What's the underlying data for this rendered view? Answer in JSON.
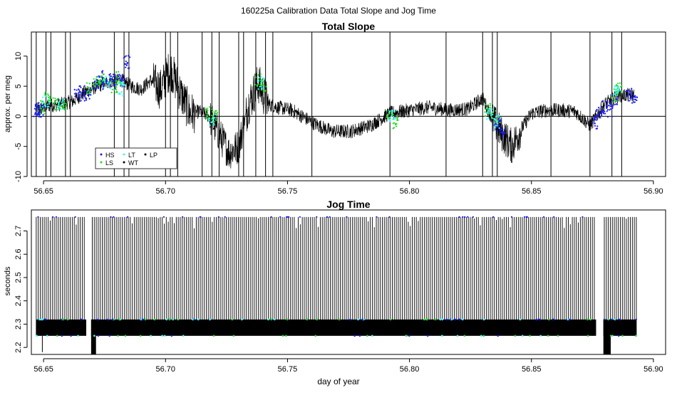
{
  "figure": {
    "title": "160225a   Calibration Data Total Slope and Jog Time"
  },
  "chart_data": [
    {
      "type": "line",
      "title": "Total Slope",
      "xlabel": "",
      "ylabel": "approx. per meg",
      "xlim": [
        56.645,
        56.905
      ],
      "ylim": [
        -10,
        14
      ],
      "xticks": [
        56.65,
        56.7,
        56.75,
        56.8,
        56.85,
        56.9
      ],
      "xtick_labels": [
        "56.65",
        "56.70",
        "56.75",
        "56.80",
        "56.85",
        "56.90"
      ],
      "yticks": [
        -10,
        -5,
        0,
        5,
        10
      ],
      "ytick_labels": [
        "-10",
        "-5",
        "0",
        "5",
        "10"
      ],
      "reference_line_y": 0,
      "legend": {
        "placement": "bottom-left",
        "entries": [
          {
            "label": "HS",
            "color": "#1a1aff"
          },
          {
            "label": "LT",
            "color": "#33ffff"
          },
          {
            "label": "LP",
            "color": "#000000"
          },
          {
            "label": "LS",
            "color": "#22dd22"
          },
          {
            "label": "WT",
            "color": "#000000"
          }
        ]
      },
      "series": [
        {
          "color": "#000000",
          "x": [
            56.647,
            56.652,
            56.657,
            56.662,
            56.667,
            56.672,
            56.677,
            56.682,
            56.686,
            56.69,
            56.694,
            56.698,
            56.702,
            56.706,
            56.71,
            56.714,
            56.718,
            56.722,
            56.726,
            56.73,
            56.734,
            56.738,
            56.742,
            56.746,
            56.752,
            56.76,
            56.768,
            56.776,
            56.784,
            56.792,
            56.8,
            56.808,
            56.816,
            56.824,
            56.83,
            56.834,
            56.838,
            56.842,
            56.846,
            56.85,
            56.856,
            56.862,
            56.868,
            56.874,
            56.88,
            56.886,
            56.892
          ],
          "y": [
            1.0,
            1.8,
            2.0,
            2.5,
            4.0,
            5.0,
            5.8,
            6.0,
            5.0,
            4.5,
            6.0,
            4.5,
            8.0,
            4.0,
            0.5,
            0.8,
            0.0,
            -3.0,
            -6.0,
            -5.0,
            2.0,
            5.5,
            2.0,
            1.5,
            1.0,
            -1.0,
            -2.5,
            -2.5,
            -1.5,
            0.5,
            1.0,
            1.5,
            1.0,
            1.2,
            3.0,
            -0.5,
            -3.0,
            -5.0,
            -2.0,
            0.5,
            1.0,
            1.0,
            0.8,
            -1.5,
            2.0,
            3.5,
            3.5
          ]
        },
        {
          "name": "HS",
          "color": "#1a1aff",
          "x": [
            56.647,
            56.648,
            56.649,
            56.664,
            56.666,
            56.668,
            56.671,
            56.673,
            56.675,
            56.678,
            56.68,
            56.682,
            56.684,
            56.836,
            56.838,
            56.876,
            56.878,
            56.88,
            56.882,
            56.884,
            56.89,
            56.892
          ],
          "y": [
            1.0,
            0.8,
            1.2,
            3.5,
            4.0,
            3.5,
            5.5,
            6.5,
            5.0,
            6.0,
            5.5,
            6.0,
            9.0,
            -1.5,
            -2.5,
            -1.0,
            0.5,
            1.5,
            1.0,
            2.5,
            3.5,
            3.0
          ]
        },
        {
          "name": "LS",
          "color": "#22dd22",
          "x": [
            56.65,
            56.652,
            56.655,
            56.658,
            56.669,
            56.672,
            56.674,
            56.679,
            56.681,
            56.718,
            56.72,
            56.738,
            56.74,
            56.792,
            56.794,
            56.832,
            56.835,
            56.884,
            56.886
          ],
          "y": [
            1.5,
            3.5,
            2.0,
            2.0,
            4.5,
            5.5,
            6.0,
            5.0,
            6.5,
            0.5,
            0.0,
            6.0,
            5.0,
            0.5,
            -1.0,
            1.0,
            0.0,
            3.5,
            4.5
          ]
        },
        {
          "name": "LT",
          "color": "#33ffff",
          "x": [
            56.651,
            56.657,
            56.676,
            56.682,
            56.719,
            56.739,
            56.793,
            56.833,
            56.836,
            56.885
          ],
          "y": [
            2.5,
            1.8,
            5.5,
            4.5,
            -0.5,
            5.5,
            0.0,
            0.5,
            -1.0,
            4.0
          ]
        }
      ],
      "spikes_x": [
        56.647,
        56.651,
        56.653,
        56.659,
        56.661,
        56.679,
        56.683,
        56.685,
        56.7,
        56.702,
        56.705,
        56.715,
        56.719,
        56.722,
        56.73,
        56.732,
        56.737,
        56.741,
        56.744,
        56.76,
        56.792,
        56.815,
        56.83,
        56.834,
        56.836,
        56.858,
        56.874,
        56.883,
        56.887
      ]
    },
    {
      "type": "line",
      "title": "Jog Time",
      "xlabel": "day of year",
      "ylabel": "seconds",
      "xlim": [
        56.645,
        56.905
      ],
      "ylim": [
        2.17,
        2.79
      ],
      "xticks": [
        56.65,
        56.7,
        56.75,
        56.8,
        56.85,
        56.9
      ],
      "xtick_labels": [
        "56.65",
        "56.70",
        "56.75",
        "56.80",
        "56.85",
        "56.90"
      ],
      "yticks": [
        2.2,
        2.3,
        2.4,
        2.5,
        2.6,
        2.7
      ],
      "ytick_labels": [
        "2.2",
        "2.3",
        "2.4",
        "2.5",
        "2.6",
        "2.7"
      ],
      "x_start": 56.647,
      "x_end": 56.893,
      "high_level": 2.76,
      "band_top": 2.32,
      "band_bottom": 2.25,
      "dips": [
        {
          "x_start": 56.6695,
          "x_end": 56.6715,
          "y": 2.16
        },
        {
          "x_start": 56.8795,
          "x_end": 56.8825,
          "y": 2.16
        }
      ],
      "gaps": [
        {
          "x_start": 56.6675,
          "x_end": 56.6695
        },
        {
          "x_start": 56.8765,
          "x_end": 56.8795
        }
      ],
      "extra_low_x": 56.6495,
      "extra_low_y": 2.18
    }
  ]
}
